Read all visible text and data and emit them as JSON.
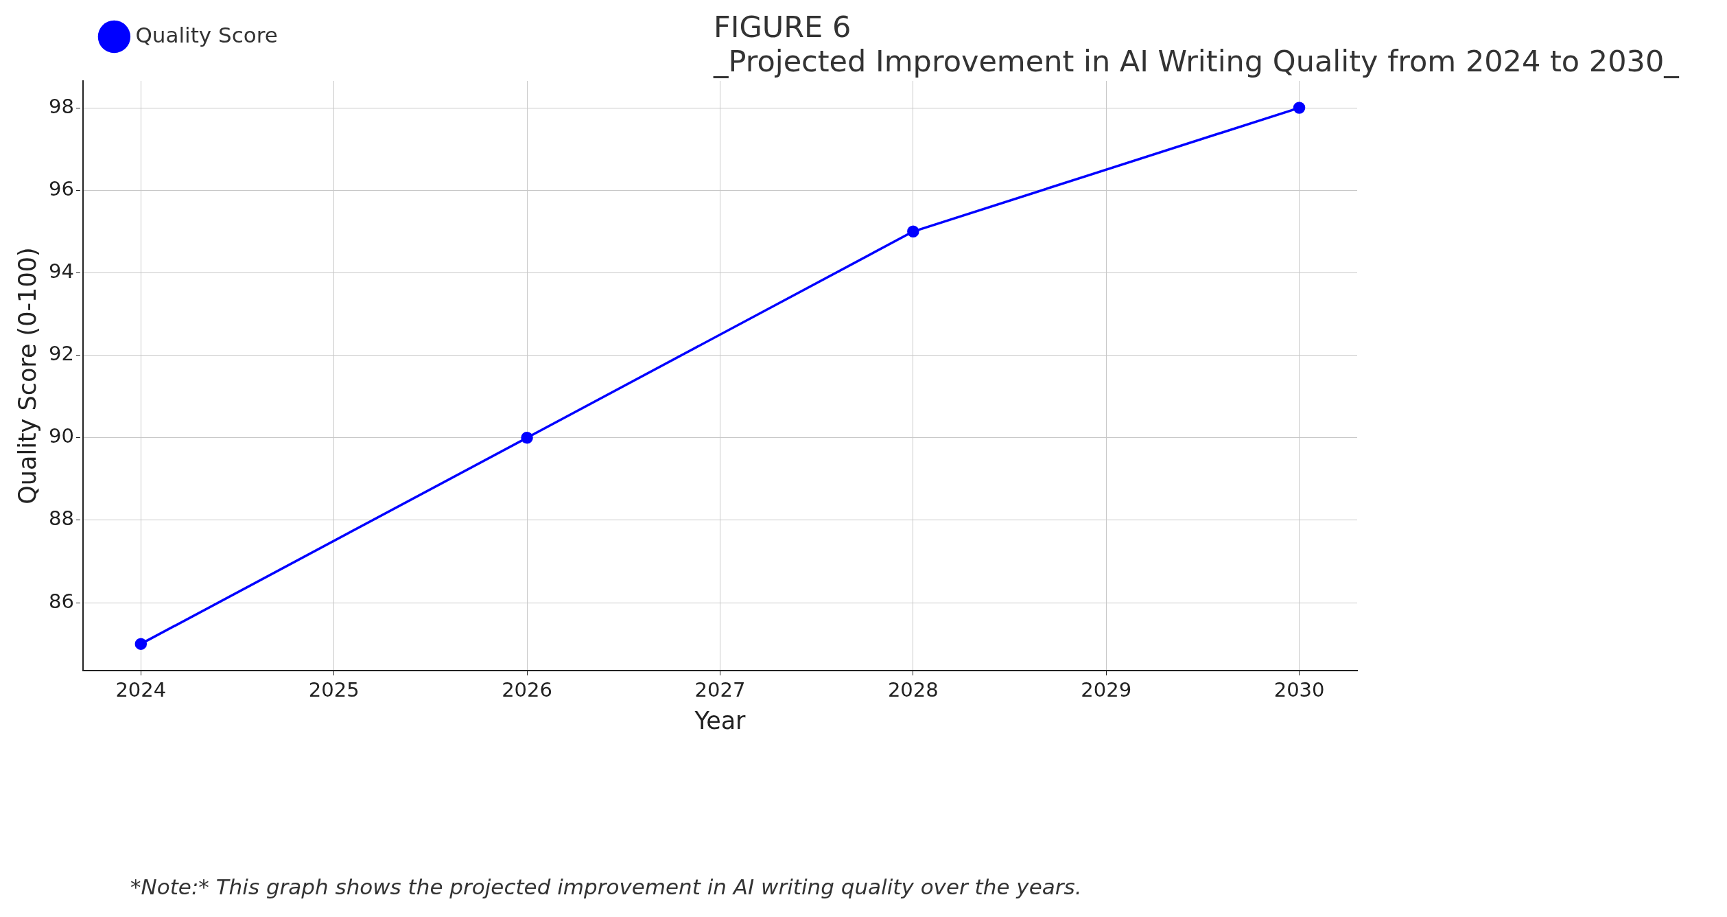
{
  "chart_data": {
    "type": "line",
    "title": "FIGURE 6",
    "subtitle": "_Projected Improvement in AI Writing Quality from 2024 to 2030_",
    "xlabel": "Year",
    "ylabel": "Quality Score (0-100)",
    "x": [
      2024,
      2026,
      2028,
      2030
    ],
    "series": [
      {
        "name": "Quality Score",
        "color": "#0000ff",
        "values": [
          85,
          90,
          95,
          98
        ]
      }
    ],
    "xlim": [
      2023.7,
      2030.3
    ],
    "xticks": [
      2024,
      2025,
      2026,
      2027,
      2028,
      2029,
      2030
    ],
    "ylim": [
      84.35,
      98.65
    ],
    "yticks": [
      86,
      88,
      90,
      92,
      94,
      96,
      98
    ],
    "grid": true,
    "legend": "top left",
    "marker": "circle",
    "line_style": "solid",
    "annotations": [
      "*Note:* This graph shows the projected improvement in AI writing quality over the years."
    ]
  }
}
